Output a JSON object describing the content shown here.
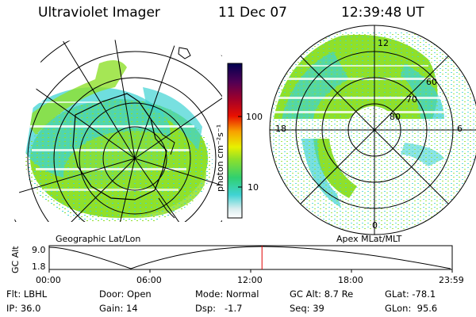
{
  "header": {
    "instrument": "Ultraviolet Imager",
    "date": "11 Dec 07",
    "time": "12:39:48 UT"
  },
  "colorbar": {
    "unit_label": "photon cm⁻²s⁻¹",
    "ticks": [
      {
        "label": "100",
        "value": 100
      },
      {
        "label": "10",
        "value": 10
      }
    ],
    "colors": [
      "#ffffff",
      "#c9e6ea",
      "#3fd3d3",
      "#2fd070",
      "#8fe02a",
      "#e8f000",
      "#f8a000",
      "#e81000",
      "#a0002a",
      "#500055",
      "#000050"
    ]
  },
  "geo_panel": {
    "label": "Geographic Lat/Lon"
  },
  "apex_panel": {
    "label": "Apex MLat/MLT",
    "mlt_labels": [
      {
        "label": "12",
        "pos": "top"
      },
      {
        "label": "6",
        "pos": "right"
      },
      {
        "label": "18",
        "pos": "left"
      },
      {
        "label": "0",
        "pos": "bottom"
      }
    ],
    "lat_labels": [
      "60",
      "70",
      "80"
    ]
  },
  "altitude_plot": {
    "ylabel": "GC Alt",
    "y_ticks": [
      "9.0",
      "1.8"
    ],
    "x_ticks": [
      "00:00",
      "06:00",
      "12:00",
      "18:00",
      "23:59"
    ],
    "current_time_fraction": 0.528
  },
  "footer": {
    "row1": [
      {
        "key": "Flt:",
        "value": "LBHL"
      },
      {
        "key": "Door:",
        "value": "Open"
      },
      {
        "key": "Mode:",
        "value": "Normal"
      },
      {
        "key": "GC Alt:",
        "value": "8.7 Re"
      },
      {
        "key": "GLat:",
        "value": "-78.1"
      }
    ],
    "row2": [
      {
        "key": "IP:",
        "value": "36.0"
      },
      {
        "key": "Gain:",
        "value": "14"
      },
      {
        "key": "Dsp:",
        "value": "-1.7"
      },
      {
        "key": "Seq:",
        "value": "39"
      },
      {
        "key": "GLon:",
        "value": "95.6"
      }
    ]
  }
}
